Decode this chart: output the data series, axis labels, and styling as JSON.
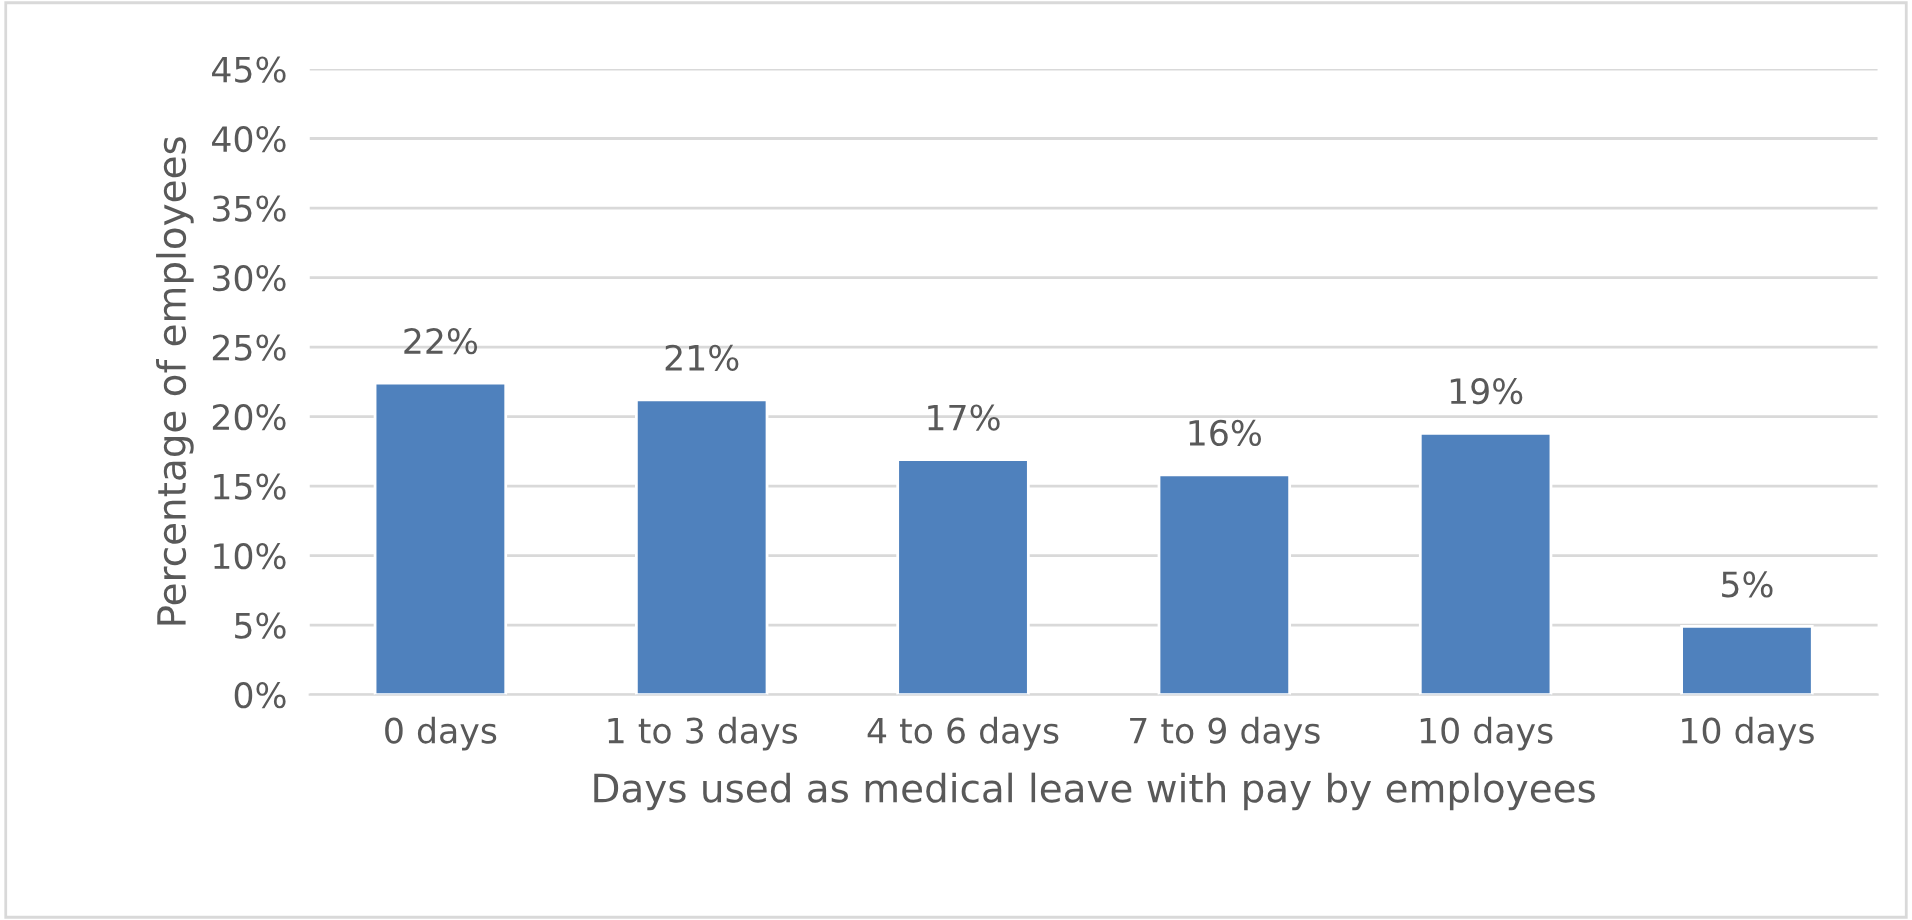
{
  "chart_data": {
    "type": "bar",
    "categories": [
      "0 days",
      "1 to 3 days",
      "4 to 6 days",
      "7 to 9 days",
      "10 days",
      "10 days"
    ],
    "values": [
      22.4,
      21.2,
      16.9,
      15.8,
      18.8,
      4.9
    ],
    "value_labels": [
      "22%",
      "21%",
      "17%",
      "16%",
      "19%",
      "5%"
    ],
    "color": "#4f81bd",
    "xlabel": "Days used as medical leave with pay by employees",
    "ylabel": "Percentage of employees",
    "ylim": [
      0,
      45
    ],
    "yticks": [
      {
        "value": 0,
        "label": "0%"
      },
      {
        "value": 5,
        "label": "5%"
      },
      {
        "value": 10,
        "label": "10%"
      },
      {
        "value": 15,
        "label": "15%"
      },
      {
        "value": 20,
        "label": "20%"
      },
      {
        "value": 25,
        "label": "25%"
      },
      {
        "value": 30,
        "label": "30%"
      },
      {
        "value": 35,
        "label": "35%"
      },
      {
        "value": 40,
        "label": "40%"
      },
      {
        "value": 45,
        "label": "45%"
      }
    ],
    "grid": "y"
  }
}
